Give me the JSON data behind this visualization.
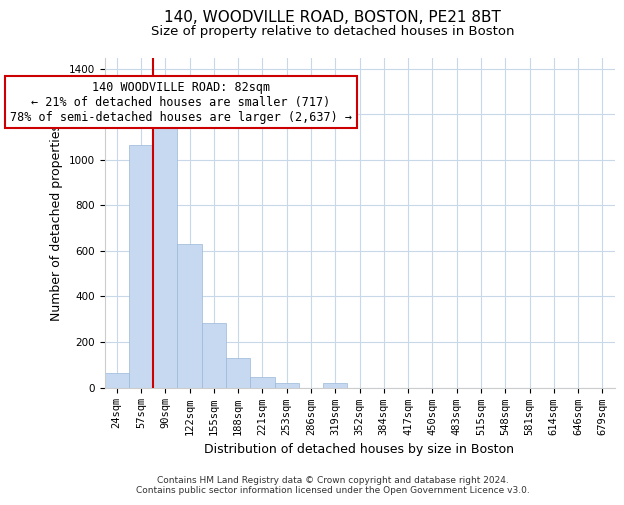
{
  "title": "140, WOODVILLE ROAD, BOSTON, PE21 8BT",
  "subtitle": "Size of property relative to detached houses in Boston",
  "xlabel": "Distribution of detached houses by size in Boston",
  "ylabel": "Number of detached properties",
  "bar_labels": [
    "24sqm",
    "57sqm",
    "90sqm",
    "122sqm",
    "155sqm",
    "188sqm",
    "221sqm",
    "253sqm",
    "286sqm",
    "319sqm",
    "352sqm",
    "384sqm",
    "417sqm",
    "450sqm",
    "483sqm",
    "515sqm",
    "548sqm",
    "581sqm",
    "614sqm",
    "646sqm",
    "679sqm"
  ],
  "bar_values": [
    65,
    1065,
    1155,
    630,
    285,
    130,
    48,
    20,
    0,
    20,
    0,
    0,
    0,
    0,
    0,
    0,
    0,
    0,
    0,
    0,
    0
  ],
  "bar_color": "#c6d9f1",
  "bar_edge_color": "#9ab8d8",
  "vline_position": 1.5,
  "vline_color": "#cc0000",
  "ylim": [
    0,
    1450
  ],
  "yticks": [
    0,
    200,
    400,
    600,
    800,
    1000,
    1200,
    1400
  ],
  "annotation_text": "140 WOODVILLE ROAD: 82sqm\n← 21% of detached houses are smaller (717)\n78% of semi-detached houses are larger (2,637) →",
  "annotation_box_color": "#ffffff",
  "annotation_box_edge": "#cc0000",
  "footer_line1": "Contains HM Land Registry data © Crown copyright and database right 2024.",
  "footer_line2": "Contains public sector information licensed under the Open Government Licence v3.0.",
  "title_fontsize": 11,
  "subtitle_fontsize": 9.5,
  "axis_label_fontsize": 9,
  "tick_fontsize": 7.5,
  "annotation_fontsize": 8.5,
  "footer_fontsize": 6.5,
  "background_color": "#ffffff",
  "grid_color": "#c8d8e8"
}
